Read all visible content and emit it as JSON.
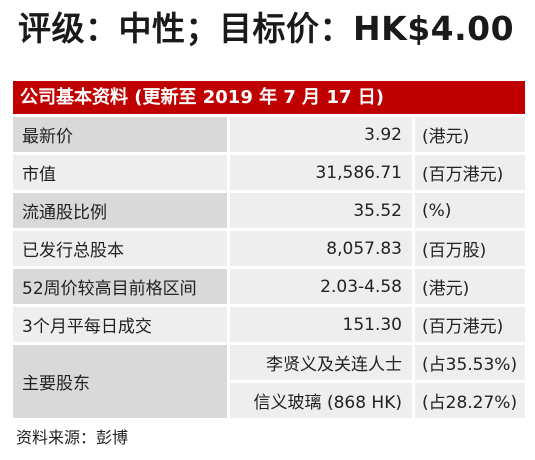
{
  "rating_line": "评级：中性；目标价：HK$4.00",
  "table": {
    "header": "公司基本资料 (更新至 2019 年 7 月 17 日)",
    "rows": [
      {
        "label": "最新价",
        "value": "3.92",
        "unit": "(港元)"
      },
      {
        "label": "市值",
        "value": "31,586.71",
        "unit": "(百万港元)"
      },
      {
        "label": "流通股比例",
        "value": "35.52",
        "unit": "(%)"
      },
      {
        "label": "已发行总股本",
        "value": "8,057.83",
        "unit": "(百万股)"
      },
      {
        "label": "52周价较高目前格区间",
        "value": "2.03-4.58",
        "unit": "(港元)"
      },
      {
        "label": "3个月平每日成交",
        "value": "151.30",
        "unit": "(百万港元)"
      }
    ],
    "shareholders": {
      "label": "主要股东",
      "items": [
        {
          "name": "李贤义及关连人士",
          "share": "(占35.53%)"
        },
        {
          "name": "信义玻璃 (868 HK)",
          "share": "(占28.27%)"
        }
      ]
    }
  },
  "source": "资料来源：彭博",
  "colors": {
    "header_bg": "#c00000",
    "row_dark": "#d9d9d9",
    "row_light": "#eeeeee"
  }
}
